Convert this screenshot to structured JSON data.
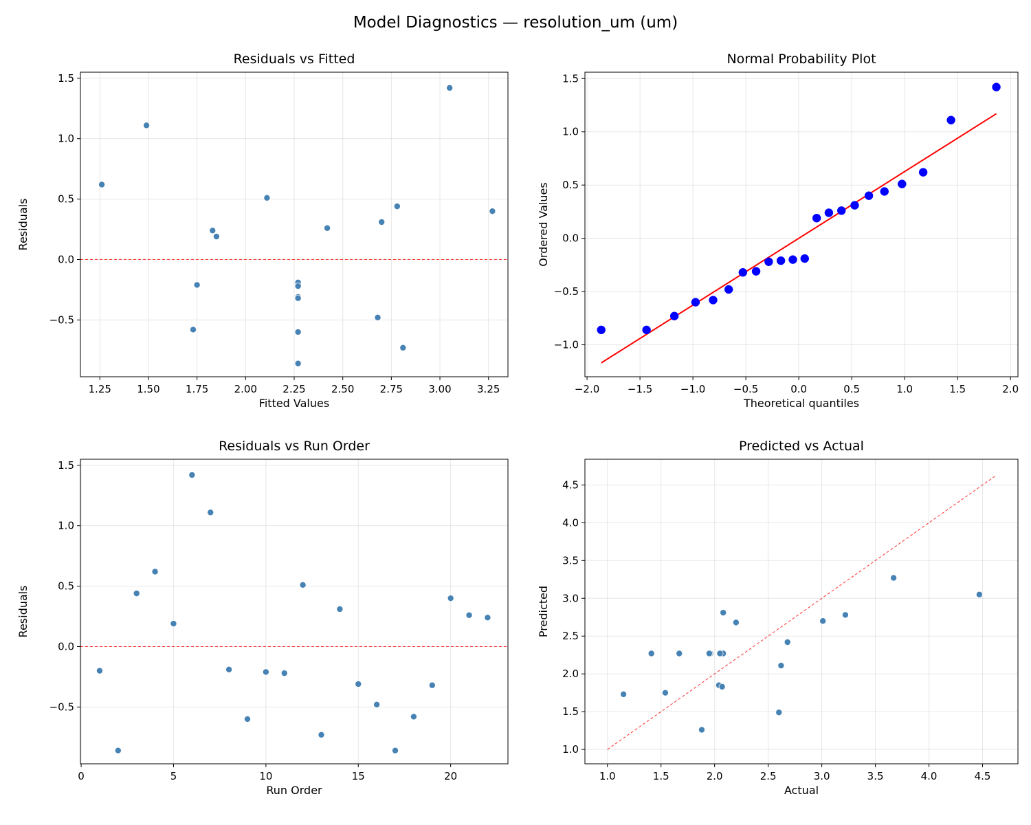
{
  "suptitle": "Model Diagnostics — resolution_um (um)",
  "chart_data": [
    {
      "type": "scatter",
      "title": "Residuals vs Fitted",
      "xlabel": "Fitted Values",
      "ylabel": "Residuals",
      "xlim": [
        1.15,
        3.35
      ],
      "ylim": [
        -0.97,
        1.55
      ],
      "xticks": [
        1.25,
        1.5,
        1.75,
        2.0,
        2.25,
        2.5,
        2.75,
        3.0,
        3.25
      ],
      "xtick_labels": [
        "1.25",
        "1.50",
        "1.75",
        "2.00",
        "2.25",
        "2.50",
        "2.75",
        "3.00",
        "3.25"
      ],
      "yticks": [
        -0.5,
        0.0,
        0.5,
        1.0,
        1.5
      ],
      "ytick_labels": [
        "−0.5",
        "0.0",
        "0.5",
        "1.0",
        "1.5"
      ],
      "grid": true,
      "point_color": "#4682b4",
      "x": [
        2.27,
        2.27,
        2.78,
        1.26,
        1.85,
        3.05,
        1.49,
        2.27,
        2.27,
        1.75,
        2.27,
        2.11,
        2.81,
        2.7,
        2.27,
        2.68,
        2.27,
        1.73,
        2.27,
        3.27,
        2.42,
        1.83
      ],
      "y": [
        -0.2,
        -0.86,
        0.44,
        0.62,
        0.19,
        1.42,
        1.11,
        -0.19,
        -0.6,
        -0.21,
        -0.22,
        0.51,
        -0.73,
        0.31,
        -0.31,
        -0.48,
        -0.86,
        -0.58,
        -0.32,
        0.4,
        0.26,
        0.24
      ],
      "reference_line": {
        "type": "horizontal",
        "y": 0,
        "color": "#ff0000",
        "style": "dashed"
      }
    },
    {
      "type": "scatter",
      "title": "Normal Probability Plot",
      "xlabel": "Theoretical quantiles",
      "ylabel": "Ordered Values",
      "xlim": [
        -2.02,
        2.07
      ],
      "ylim": [
        -1.3,
        1.56
      ],
      "xticks": [
        -2.0,
        -1.5,
        -1.0,
        -0.5,
        0.0,
        0.5,
        1.0,
        1.5,
        2.0
      ],
      "xtick_labels": [
        "−2.0",
        "−1.5",
        "−1.0",
        "−0.5",
        "0.0",
        "0.5",
        "1.0",
        "1.5",
        "2.0"
      ],
      "yticks": [
        -1.0,
        -0.5,
        0.0,
        0.5,
        1.0,
        1.5
      ],
      "ytick_labels": [
        "−1.0",
        "−0.5",
        "0.0",
        "0.5",
        "1.0",
        "1.5"
      ],
      "grid": true,
      "point_color": "#0000ff",
      "x": [
        -1.866,
        -1.438,
        -1.175,
        -0.975,
        -0.809,
        -0.662,
        -0.528,
        -0.403,
        -0.284,
        -0.169,
        -0.056,
        0.056,
        0.169,
        0.284,
        0.403,
        0.528,
        0.662,
        0.809,
        0.975,
        1.175,
        1.438,
        1.866
      ],
      "y": [
        -0.86,
        -0.86,
        -0.73,
        -0.6,
        -0.58,
        -0.48,
        -0.32,
        -0.31,
        -0.22,
        -0.21,
        -0.2,
        -0.19,
        0.19,
        0.24,
        0.26,
        0.31,
        0.4,
        0.44,
        0.51,
        0.62,
        1.11,
        1.42
      ],
      "reference_line": {
        "type": "fit",
        "slope": 0.627,
        "intercept": 0.0,
        "color": "#ff0000",
        "style": "solid"
      }
    },
    {
      "type": "scatter",
      "title": "Residuals vs Run Order",
      "xlabel": "Run Order",
      "ylabel": "Residuals",
      "xlim": [
        -0.04,
        23.1
      ],
      "ylim": [
        -0.97,
        1.55
      ],
      "xticks": [
        0,
        5,
        10,
        15,
        20
      ],
      "xtick_labels": [
        "0",
        "5",
        "10",
        "15",
        "20"
      ],
      "yticks": [
        -0.5,
        0.0,
        0.5,
        1.0,
        1.5
      ],
      "ytick_labels": [
        "−0.5",
        "0.0",
        "0.5",
        "1.0",
        "1.5"
      ],
      "grid": true,
      "point_color": "#4682b4",
      "x": [
        1,
        2,
        3,
        4,
        5,
        6,
        7,
        8,
        9,
        10,
        11,
        12,
        13,
        14,
        15,
        16,
        17,
        18,
        19,
        20,
        21,
        22
      ],
      "y": [
        -0.2,
        -0.86,
        0.44,
        0.62,
        0.19,
        1.42,
        1.11,
        -0.19,
        -0.6,
        -0.21,
        -0.22,
        0.51,
        -0.73,
        0.31,
        -0.31,
        -0.48,
        -0.86,
        -0.58,
        -0.32,
        0.4,
        0.26,
        0.24
      ],
      "reference_line": {
        "type": "horizontal",
        "y": 0,
        "color": "#ff0000",
        "style": "dashed"
      }
    },
    {
      "type": "scatter",
      "title": "Predicted vs Actual",
      "xlabel": "Actual",
      "ylabel": "Predicted",
      "xlim": [
        0.79,
        4.83
      ],
      "ylim": [
        0.81,
        4.84
      ],
      "xticks": [
        1.0,
        1.5,
        2.0,
        2.5,
        3.0,
        3.5,
        4.0,
        4.5
      ],
      "xtick_labels": [
        "1.0",
        "1.5",
        "2.0",
        "2.5",
        "3.0",
        "3.5",
        "4.0",
        "4.5"
      ],
      "yticks": [
        1.0,
        1.5,
        2.0,
        2.5,
        3.0,
        3.5,
        4.0,
        4.5
      ],
      "ytick_labels": [
        "1.0",
        "1.5",
        "2.0",
        "2.5",
        "3.0",
        "3.5",
        "4.0",
        "4.5"
      ],
      "grid": true,
      "point_color": "#4682b4",
      "x": [
        2.07,
        1.41,
        3.22,
        1.88,
        2.04,
        4.47,
        2.6,
        2.08,
        1.67,
        1.54,
        2.05,
        2.62,
        2.08,
        3.01,
        1.96,
        2.2,
        1.41,
        1.15,
        1.95,
        3.67,
        2.68,
        2.07
      ],
      "y": [
        2.27,
        2.27,
        2.78,
        1.26,
        1.85,
        3.05,
        1.49,
        2.27,
        2.27,
        1.75,
        2.27,
        2.11,
        2.81,
        2.7,
        2.27,
        2.68,
        2.27,
        1.73,
        2.27,
        3.27,
        2.42,
        1.83
      ],
      "reference_line": {
        "type": "identity",
        "from": 1.0,
        "to": 4.63,
        "color": "#ff0000",
        "style": "dashed"
      }
    }
  ]
}
